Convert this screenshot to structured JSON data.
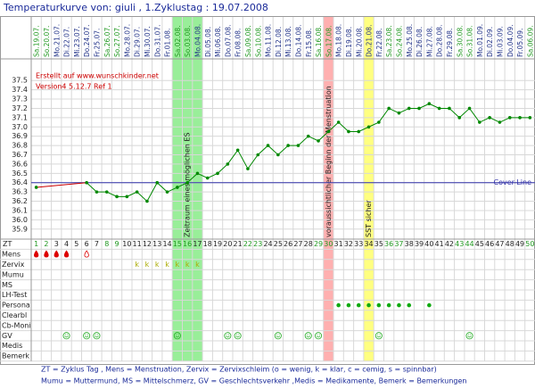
{
  "chart_data": {
    "type": "line",
    "title": "Temperaturkurve von: giuli , 1.Zyklustag : 19.07.2008",
    "credit": "Erstellt auf www.wunschkinder.net",
    "version": "Version4 5.12.7 Ref 1",
    "categories": [
      "Sa.19.07.",
      "So.20.07.",
      "Mo.21.07.",
      "Di.22.07.",
      "Mi.23.07.",
      "Do.24.07.",
      "Fr.25.07.",
      "Sa.26.07.",
      "So.27.07.",
      "Mo.28.07.",
      "Di.29.07.",
      "Mi.30.07.",
      "Do.31.07.",
      "Fr.01.08.",
      "Sa.02.08.",
      "So.03.08.",
      "Mo.04.08.",
      "Di.05.08.",
      "Mi.06.08.",
      "Do.07.08.",
      "Fr.08.08.",
      "Sa.09.08.",
      "So.10.08.",
      "Mo.11.08.",
      "Di.12.08.",
      "Mi.13.08.",
      "Do.14.08.",
      "Fr.15.08.",
      "Sa.16.08.",
      "So.17.08.",
      "Mo.18.08.",
      "Di.19.08.",
      "Mi.20.08.",
      "Do.21.08.",
      "Fr.22.08.",
      "Sa.23.08.",
      "So.24.08.",
      "Mo.25.08.",
      "Di.26.08.",
      "Mi.27.08.",
      "Do.28.08.",
      "Fr.29.08.",
      "Sa.30.08.",
      "So.31.08.",
      "Mo.01.09.",
      "Di.02.09.",
      "Mi.03.09.",
      "Do.04.09.",
      "Fr.05.09.",
      "Sa.06.09."
    ],
    "x": [
      1,
      2,
      3,
      4,
      5,
      6,
      7,
      8,
      9,
      10,
      11,
      12,
      13,
      14,
      15,
      16,
      17,
      18,
      19,
      20,
      21,
      22,
      23,
      24,
      25,
      26,
      27,
      28,
      29,
      30,
      31,
      32,
      33,
      34,
      35,
      36,
      37,
      38,
      39,
      40,
      41,
      42,
      43,
      44,
      45,
      46,
      47,
      48,
      49,
      50
    ],
    "values": [
      36.35,
      null,
      null,
      null,
      null,
      36.4,
      36.3,
      36.3,
      36.25,
      36.25,
      36.3,
      36.2,
      36.4,
      36.3,
      36.35,
      36.4,
      36.5,
      36.45,
      36.5,
      36.6,
      36.75,
      36.55,
      36.7,
      36.8,
      36.7,
      36.8,
      36.8,
      36.9,
      36.85,
      36.95,
      37.05,
      36.95,
      36.95,
      37.0,
      37.05,
      37.2,
      37.15,
      37.2,
      37.2,
      37.25,
      37.2,
      37.2,
      37.1,
      37.2,
      37.05,
      37.1,
      37.05,
      37.1,
      37.1,
      37.1
    ],
    "color": "#008800",
    "gap_color": "#cc0000",
    "ylim": [
      35.85,
      37.55
    ],
    "yticks": [
      35.9,
      {
        "value": 36,
        "label": "36.0"
      },
      36.1,
      36.2,
      36.3,
      36.4,
      36.5,
      36.6,
      36.7,
      36.8,
      36.9,
      {
        "value": 37,
        "label": "37.0"
      },
      37.1,
      37.2,
      37.3,
      37.4,
      37.5
    ],
    "grid": true,
    "cover_line": {
      "label": "Cover-Line",
      "value": 36.4,
      "color": "#3333aa"
    },
    "bands": [
      {
        "label": "Zeitraum eines möglichen ES",
        "from": 15,
        "to": 17,
        "color": "#99ee99"
      },
      {
        "label": "voraussichtlicher Beginn der Menstruation",
        "from": 30,
        "to": 30,
        "color": "#ffb0b0"
      },
      {
        "label": "SST sicher",
        "from": 34,
        "to": 34,
        "color": "#ffff80"
      }
    ],
    "row_header": "ZT",
    "row_labels": [
      "Mens",
      "Zervix",
      "Mumu",
      "MS",
      "LH-Test",
      "Persona",
      "Clearbl",
      "Cb-Moni",
      "GV",
      "Medis",
      "Bemerk"
    ],
    "mens": {
      "days": [
        1,
        2,
        3,
        4
      ],
      "light_days": [
        6
      ]
    },
    "zervix": [
      {
        "day": 11,
        "code": "k"
      },
      {
        "day": 12,
        "code": "k"
      },
      {
        "day": 13,
        "code": "k"
      },
      {
        "day": 14,
        "code": "k"
      },
      {
        "day": 15,
        "code": "k"
      },
      {
        "day": 16,
        "code": "k"
      },
      {
        "day": 17,
        "code": "k"
      }
    ],
    "persona": [
      31,
      32,
      33,
      34,
      35,
      36,
      37,
      38,
      40
    ],
    "gv": [
      4,
      6,
      7,
      15,
      20,
      21,
      25,
      28,
      29,
      35,
      44
    ],
    "footer": [
      "ZT = Zyklus Tag , Mens = Menstruation, Zervix = Zervixschleim (o = wenig, k = klar, c = cemig, s = spinnbar)",
      "Mumu = Muttermund, MS = Mittelschmerz, GV = Geschlechtsverkehr ,Medis = Medikamente, Bemerk = Bemerkungen"
    ]
  }
}
